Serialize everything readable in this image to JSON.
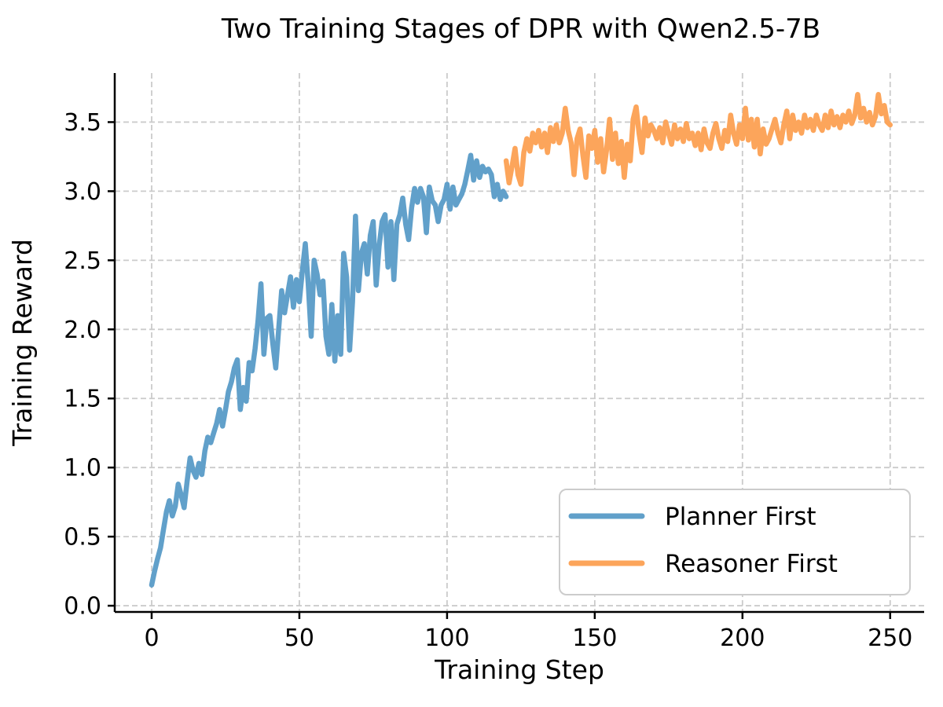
{
  "page": {
    "background_color": "#ffffff"
  },
  "chart_data": {
    "type": "line",
    "title": "Two Training Stages of DPR with Qwen2.5-7B",
    "xlabel": "Training Step",
    "ylabel": "Training Reward",
    "xlim": [
      -12.5,
      261.5
    ],
    "ylim": [
      -0.045,
      3.855
    ],
    "xticks": [
      0,
      50,
      100,
      150,
      200,
      250
    ],
    "xtick_labels": [
      "0",
      "50",
      "100",
      "150",
      "200",
      "250"
    ],
    "yticks": [
      0.0,
      0.5,
      1.0,
      1.5,
      2.0,
      2.5,
      3.0,
      3.5
    ],
    "ytick_labels": [
      "0.0",
      "0.5",
      "1.0",
      "1.5",
      "2.0",
      "2.5",
      "3.0",
      "3.5"
    ],
    "grid": true,
    "grid_style": "dashed",
    "grid_color": "#cbcbcb",
    "spine_color": "#000000",
    "legend_position": "lower right",
    "series": [
      {
        "name": "Planner First",
        "color": "#61a0ca",
        "x_start": 0,
        "x_step": 1,
        "values": [
          0.15,
          0.25,
          0.34,
          0.42,
          0.55,
          0.68,
          0.76,
          0.65,
          0.72,
          0.88,
          0.8,
          0.71,
          0.9,
          1.07,
          0.98,
          0.93,
          1.03,
          0.95,
          1.12,
          1.22,
          1.18,
          1.25,
          1.32,
          1.42,
          1.3,
          1.42,
          1.55,
          1.62,
          1.72,
          1.78,
          1.42,
          1.58,
          1.48,
          1.76,
          1.7,
          1.86,
          2.06,
          2.33,
          1.82,
          2.08,
          2.1,
          1.9,
          1.72,
          2.0,
          2.28,
          2.12,
          2.25,
          2.38,
          2.16,
          2.36,
          2.2,
          2.42,
          2.62,
          2.33,
          1.95,
          2.5,
          2.4,
          2.25,
          2.35,
          1.95,
          1.82,
          2.18,
          1.77,
          2.1,
          1.82,
          2.55,
          2.38,
          1.85,
          2.2,
          2.82,
          2.28,
          2.55,
          2.62,
          2.4,
          2.68,
          2.78,
          2.32,
          2.6,
          2.78,
          2.83,
          2.45,
          2.78,
          2.36,
          2.76,
          2.83,
          2.95,
          2.76,
          2.65,
          2.88,
          3.02,
          2.92,
          3.02,
          2.96,
          2.7,
          3.03,
          2.93,
          2.9,
          2.78,
          2.9,
          2.94,
          3.05,
          2.87,
          3.03,
          2.9,
          2.94,
          2.98,
          3.05,
          3.15,
          3.26,
          3.08,
          3.22,
          3.1,
          3.18,
          3.14,
          3.16,
          3.12,
          2.96,
          3.05,
          2.94,
          3.0,
          2.96
        ]
      },
      {
        "name": "Reasoner First",
        "color": "#fca55b",
        "x_start": 120,
        "x_step": 1,
        "values": [
          3.22,
          3.06,
          3.18,
          3.31,
          3.12,
          3.05,
          3.28,
          3.38,
          3.29,
          3.42,
          3.35,
          3.44,
          3.32,
          3.42,
          3.28,
          3.46,
          3.36,
          3.48,
          3.35,
          3.42,
          3.6,
          3.44,
          3.35,
          3.12,
          3.38,
          3.45,
          3.26,
          3.1,
          3.4,
          3.31,
          3.44,
          3.21,
          3.38,
          3.14,
          3.3,
          3.52,
          3.23,
          3.42,
          3.2,
          3.36,
          3.1,
          3.34,
          3.22,
          3.52,
          3.61,
          3.42,
          3.28,
          3.53,
          3.4,
          3.48,
          3.44,
          3.38,
          3.46,
          3.35,
          3.5,
          3.42,
          3.34,
          3.48,
          3.38,
          3.45,
          3.36,
          3.49,
          3.38,
          3.42,
          3.33,
          3.42,
          3.3,
          3.45,
          3.35,
          3.31,
          3.42,
          3.49,
          3.38,
          3.31,
          3.44,
          3.36,
          3.55,
          3.42,
          3.34,
          3.48,
          3.38,
          3.6,
          3.37,
          3.52,
          3.32,
          3.52,
          3.27,
          3.45,
          3.34,
          3.38,
          3.45,
          3.52,
          3.42,
          3.35,
          3.48,
          3.58,
          3.38,
          3.55,
          3.44,
          3.5,
          3.42,
          3.55,
          3.46,
          3.52,
          3.44,
          3.55,
          3.48,
          3.44,
          3.55,
          3.46,
          3.58,
          3.48,
          3.54,
          3.46,
          3.55,
          3.5,
          3.58,
          3.49,
          3.55,
          3.7,
          3.53,
          3.6,
          3.5,
          3.57,
          3.48,
          3.54,
          3.7,
          3.56,
          3.62,
          3.5,
          3.48
        ]
      }
    ]
  }
}
